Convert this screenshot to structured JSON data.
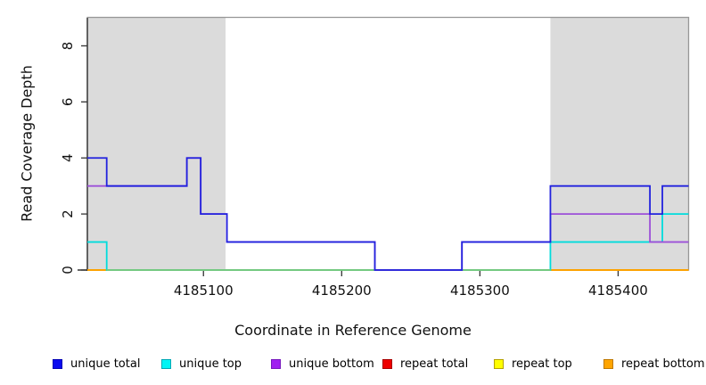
{
  "chart_data": {
    "type": "line",
    "step": true,
    "title": "",
    "xlabel": "Coordinate in Reference Genome",
    "ylabel": "Read Coverage Depth",
    "x_range": [
      4185016,
      4185451
    ],
    "y_range": [
      0,
      9
    ],
    "x_ticks": [
      {
        "value": 4185100,
        "label": "4185100"
      },
      {
        "value": 4185200,
        "label": "4185200"
      },
      {
        "value": 4185300,
        "label": "4185300"
      },
      {
        "value": 4185400,
        "label": "4185400"
      }
    ],
    "y_ticks": [
      {
        "value": 0,
        "label": "0"
      },
      {
        "value": 2,
        "label": "2"
      },
      {
        "value": 4,
        "label": "4"
      },
      {
        "value": 6,
        "label": "6"
      },
      {
        "value": 8,
        "label": "8"
      }
    ],
    "shade_color": "#DBDBDB",
    "border_color": "#979797",
    "axis_color": "#333333",
    "shaded_regions": [
      {
        "x1": 4185016,
        "x2": 4185116
      },
      {
        "x1": 4185351,
        "x2": 4185451
      }
    ],
    "series": [
      {
        "name": "repeat-total",
        "label": "repeat total",
        "color": "#DD0000",
        "x_end": 4185451,
        "points": [
          [
            4185016,
            0
          ]
        ]
      },
      {
        "name": "repeat-top",
        "label": "repeat top",
        "color": "#F0F000",
        "x_end": 4185451,
        "points": [
          [
            4185016,
            0
          ]
        ]
      },
      {
        "name": "repeat-bottom",
        "label": "repeat bottom",
        "color": "#FF9E00",
        "x_end": 4185451,
        "points": [
          [
            4185016,
            0
          ]
        ]
      },
      {
        "name": "unique-top",
        "label": "unique top",
        "color": "#00DCDC",
        "x_end": 4185451,
        "points": [
          [
            4185016,
            1
          ],
          [
            4185030,
            0
          ],
          [
            4185351,
            1
          ],
          [
            4185432,
            2
          ]
        ]
      },
      {
        "name": "zero-baseline",
        "label": "",
        "color": "#7CC87C",
        "x_end": 4185351,
        "points": [
          [
            4185030,
            0
          ]
        ]
      },
      {
        "name": "unique-bottom",
        "label": "unique bottom",
        "color": "#9C50D8",
        "x_end": 4185451,
        "points": [
          [
            4185016,
            3
          ],
          [
            4185088,
            4
          ],
          [
            4185098,
            2
          ],
          [
            4185117,
            1
          ],
          [
            4185224,
            0
          ],
          [
            4185287,
            1
          ],
          [
            4185351,
            2
          ],
          [
            4185423,
            1
          ]
        ]
      },
      {
        "name": "unique-total",
        "label": "unique total",
        "color": "#2222DE",
        "x_end": 4185451,
        "points": [
          [
            4185016,
            4
          ],
          [
            4185030,
            3
          ],
          [
            4185088,
            4
          ],
          [
            4185098,
            2
          ],
          [
            4185117,
            1
          ],
          [
            4185224,
            0
          ],
          [
            4185287,
            1
          ],
          [
            4185351,
            3
          ],
          [
            4185423,
            2
          ],
          [
            4185432,
            3
          ]
        ]
      }
    ]
  },
  "legend": {
    "items": [
      {
        "label": "unique total",
        "fill": "#0A0AF0",
        "border": "#0000B4"
      },
      {
        "label": "unique top",
        "fill": "#00F5F5",
        "border": "#00A8B4"
      },
      {
        "label": "unique bottom",
        "fill": "#A020F0",
        "border": "#7718BE"
      },
      {
        "label": "repeat total",
        "fill": "#EE0000",
        "border": "#A80000"
      },
      {
        "label": "repeat top",
        "fill": "#FFFF00",
        "border": "#B4A100"
      },
      {
        "label": "repeat bottom",
        "fill": "#FFA500",
        "border": "#BE7800"
      }
    ]
  }
}
